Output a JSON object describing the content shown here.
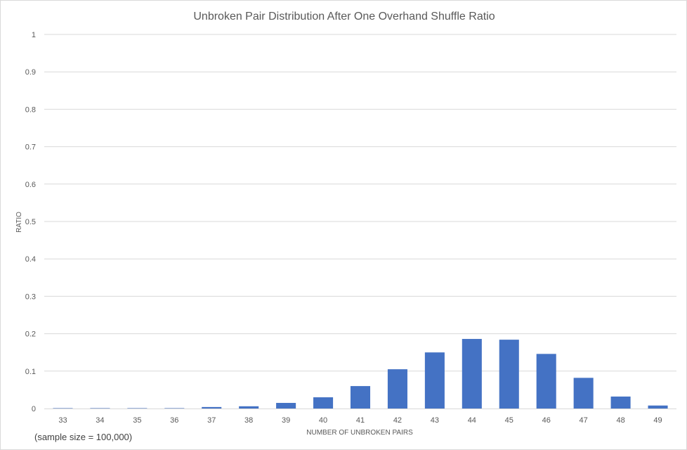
{
  "chart_data": {
    "type": "bar",
    "title": "Unbroken Pair Distribution After One Overhand Shuffle Ratio",
    "xlabel": "NUMBER OF UNBROKEN PAIRS",
    "ylabel": "RATIO",
    "categories": [
      "33",
      "34",
      "35",
      "36",
      "37",
      "38",
      "39",
      "40",
      "41",
      "42",
      "43",
      "44",
      "45",
      "46",
      "47",
      "48",
      "49"
    ],
    "values": [
      0.001,
      0.001,
      0.001,
      0.001,
      0.004,
      0.006,
      0.015,
      0.03,
      0.06,
      0.105,
      0.15,
      0.186,
      0.184,
      0.146,
      0.082,
      0.032,
      0.008
    ],
    "ylim": [
      0,
      1
    ],
    "yticks": [
      "0",
      "0.1",
      "0.2",
      "0.3",
      "0.4",
      "0.5",
      "0.6",
      "0.7",
      "0.8",
      "0.9",
      "1"
    ],
    "grid": true,
    "legend": "none",
    "bar_color": "#4472c4",
    "grid_color": "#d9d9d9",
    "note": "(sample size = 100,000)"
  }
}
